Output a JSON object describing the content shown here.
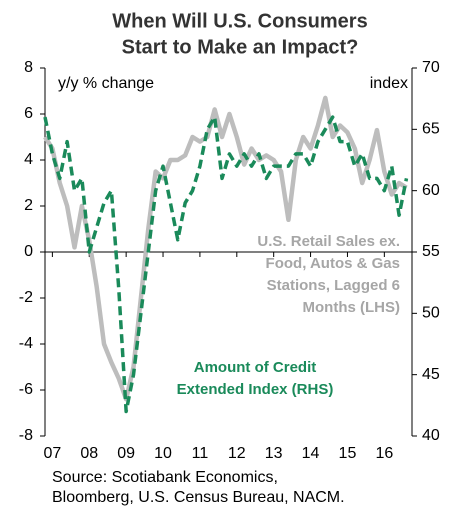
{
  "chart_data": {
    "type": "line",
    "title": [
      "When Will U.S. Consumers",
      "Start to Make an Impact?"
    ],
    "y_label": "y/y % change",
    "y2_label": "index",
    "annotations": [
      {
        "lines": [
          "U.S. Retail Sales ex.",
          "Food, Autos & Gas",
          "Stations, Lagged 6",
          "Months (LHS)"
        ],
        "color": "#a6a6a6"
      },
      {
        "lines": [
          "Amount of Credit",
          "Extended Index (RHS)"
        ],
        "color": "#1a8a5a"
      }
    ],
    "source": [
      "Source: Scotiabank Economics,",
      "Bloomberg, U.S. Census Bureau, NACM."
    ],
    "x": [
      2006.8,
      2007.0,
      2007.2,
      2007.4,
      2007.6,
      2007.8,
      2008.0,
      2008.2,
      2008.4,
      2008.6,
      2008.8,
      2009.0,
      2009.2,
      2009.4,
      2009.6,
      2009.8,
      2010.0,
      2010.2,
      2010.4,
      2010.6,
      2010.8,
      2011.0,
      2011.2,
      2011.4,
      2011.6,
      2011.8,
      2012.0,
      2012.2,
      2012.4,
      2012.6,
      2012.8,
      2013.0,
      2013.2,
      2013.4,
      2013.6,
      2013.8,
      2014.0,
      2014.2,
      2014.4,
      2014.6,
      2014.8,
      2015.0,
      2015.2,
      2015.4,
      2015.6,
      2015.8,
      2016.0,
      2016.2,
      2016.4,
      2016.6
    ],
    "xlim": [
      2006.8,
      2016.75
    ],
    "xticks": [
      {
        "value": 2007,
        "label": "07"
      },
      {
        "value": 2008,
        "label": "08"
      },
      {
        "value": 2009,
        "label": "09"
      },
      {
        "value": 2010,
        "label": "10"
      },
      {
        "value": 2011,
        "label": "11"
      },
      {
        "value": 2012,
        "label": "12"
      },
      {
        "value": 2013,
        "label": "13"
      },
      {
        "value": 2014,
        "label": "14"
      },
      {
        "value": 2015,
        "label": "15"
      },
      {
        "value": 2016,
        "label": "16"
      }
    ],
    "ylim": [
      -8,
      8
    ],
    "yticks": [
      -8,
      -6,
      -4,
      -2,
      0,
      2,
      4,
      6,
      8
    ],
    "y2lim": [
      40,
      70
    ],
    "y2ticks": [
      40,
      45,
      50,
      55,
      60,
      65,
      70
    ],
    "series": [
      {
        "name": "U.S. Retail Sales ex. Food, Autos & Gas Stations, Lagged 6 Months (LHS)",
        "color": "#bdbdbd",
        "dashed": false,
        "values": [
          5.0,
          4.5,
          3.0,
          2.0,
          0.2,
          2.0,
          0.5,
          -1.5,
          -4.0,
          -4.8,
          -5.5,
          -6.4,
          -5.0,
          -2.0,
          1.0,
          3.5,
          3.2,
          4.0,
          4.0,
          4.2,
          5.0,
          4.8,
          5.0,
          6.2,
          5.0,
          6.0,
          5.0,
          3.8,
          4.5,
          4.0,
          4.2,
          4.0,
          3.5,
          1.4,
          4.0,
          5.0,
          4.5,
          5.5,
          6.7,
          5.0,
          5.5,
          5.2,
          4.5,
          3.0,
          4.0,
          5.3,
          3.5,
          2.5,
          3.0,
          2.8
        ]
      },
      {
        "name": "Amount of Credit Extended Index (RHS)",
        "color": "#1a8a5a",
        "dashed": true,
        "axis": "y2",
        "values": [
          66,
          63,
          61,
          64,
          60,
          61,
          55,
          57,
          59,
          60,
          52,
          42,
          45,
          50,
          55,
          60,
          62,
          59,
          56,
          59,
          60,
          62,
          65,
          66,
          61,
          63,
          62,
          63,
          62,
          63,
          61,
          62,
          62,
          62,
          63,
          63,
          62,
          64,
          65,
          66,
          64,
          64,
          62,
          63,
          61,
          61,
          60,
          62,
          58,
          61
        ]
      }
    ]
  }
}
